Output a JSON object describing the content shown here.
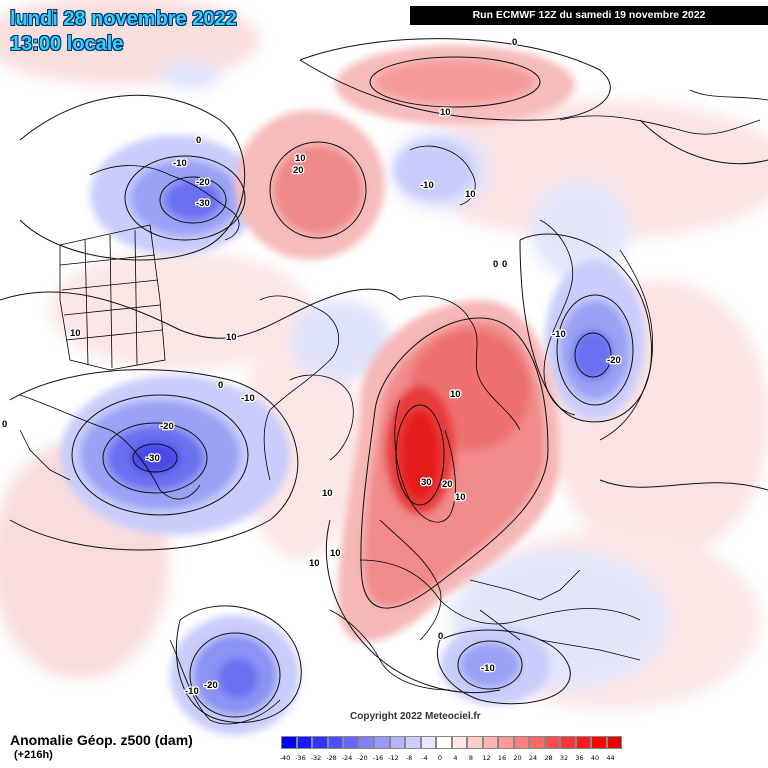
{
  "header": {
    "date_line": "lundi 28 novembre 2022",
    "time_line": "13:00 locale",
    "run_info": "Run ECMWF 12Z du samedi 19 novembre 2022"
  },
  "footer": {
    "title": "Anomalie Géop. z500 (dam)",
    "lead": "(+216h)",
    "copyright": "Copyright 2022 Meteociel.fr"
  },
  "legend": {
    "ticks": [
      "-40",
      "-36",
      "-32",
      "-28",
      "-24",
      "-20",
      "-16",
      "-12",
      "-8",
      "-4",
      "0",
      "4",
      "8",
      "12",
      "16",
      "20",
      "24",
      "28",
      "32",
      "36",
      "40",
      "44"
    ],
    "colors": [
      "#0000ff",
      "#1a1aff",
      "#3333ff",
      "#4d4dff",
      "#6666ff",
      "#8080ff",
      "#9999ff",
      "#b3b3ff",
      "#ccccff",
      "#e6e6ff",
      "#ffffff",
      "#ffe6e6",
      "#ffcccc",
      "#ffb3b3",
      "#ff9999",
      "#ff8080",
      "#ff6666",
      "#ff4d4d",
      "#ff3333",
      "#ff1a1a",
      "#ff0000",
      "#e60000"
    ]
  },
  "contour_labels": {
    "l1": "-10",
    "l2": "-20",
    "l3": "-30",
    "l4": "0",
    "l5": "10",
    "l6": "20",
    "l7": "10",
    "l8": "-10",
    "l9": "10",
    "l10": "0",
    "l11": "0",
    "l12": "0",
    "l13": "10",
    "l14": "-10",
    "l15": "-20",
    "l16": "10",
    "l17": "0",
    "l18": "10",
    "l19": "-10",
    "l20": "-20",
    "l21": "-30",
    "l22": "10",
    "l23": "30",
    "l24": "20",
    "l25": "10",
    "l26": "10",
    "l27": "10",
    "l28": "0",
    "l29": "-10",
    "l30": "-10",
    "l31": "-20",
    "l32": "0"
  }
}
